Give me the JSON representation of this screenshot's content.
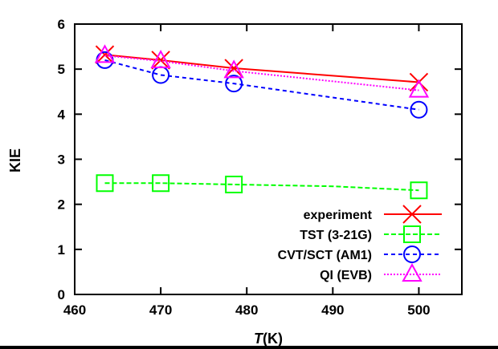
{
  "chart_data": {
    "type": "line",
    "title": "",
    "xlabel_italic": "T",
    "xlabel_rest": "(K)",
    "ylabel": "KIE",
    "xlim": [
      460,
      505
    ],
    "ylim": [
      0,
      6
    ],
    "xticks": [
      460,
      470,
      480,
      490,
      500
    ],
    "yticks": [
      0,
      1,
      2,
      3,
      4,
      5,
      6
    ],
    "legend_position": "bottom-right",
    "grid": false,
    "series": [
      {
        "name": "experiment",
        "color": "#ff0000",
        "marker": "x",
        "dash": "",
        "x": [
          463.5,
          470,
          478.5,
          500
        ],
        "y": [
          5.32,
          5.2,
          5.02,
          4.71
        ]
      },
      {
        "name": "TST (3-21G)",
        "color": "#00ff00",
        "marker": "square",
        "dash": "6,3",
        "x": [
          463.5,
          470,
          478.5,
          490,
          500
        ],
        "y": [
          2.47,
          2.47,
          2.44,
          2.4,
          2.31
        ],
        "markers_at": [
          0,
          1,
          2,
          4
        ]
      },
      {
        "name": "CVT/SCT (AM1)",
        "color": "#0000ff",
        "marker": "circle",
        "dash": "5,4",
        "x": [
          463.5,
          470,
          478.5,
          500
        ],
        "y": [
          5.2,
          4.87,
          4.68,
          4.1
        ]
      },
      {
        "name": "QI (EVB)",
        "color": "#ff00ff",
        "marker": "triangle",
        "dash": "2,2",
        "x": [
          463.5,
          470,
          478.5,
          500
        ],
        "y": [
          5.3,
          5.18,
          4.96,
          4.53
        ]
      }
    ]
  }
}
